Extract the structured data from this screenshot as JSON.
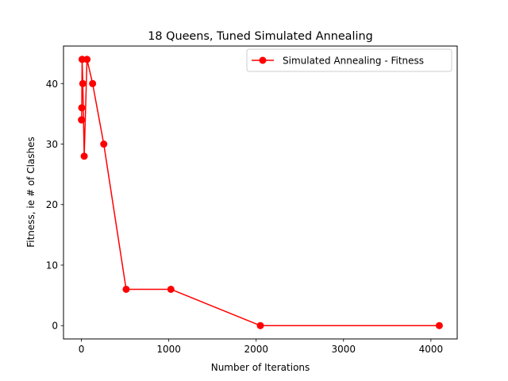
{
  "chart_data": {
    "type": "line",
    "title": "18 Queens, Tuned Simulated Annealing",
    "xlabel": "Number of Iterations",
    "ylabel": "Fitness, ie # of Clashes",
    "xlim": [
      -205,
      4301
    ],
    "ylim": [
      -2.2,
      46.2
    ],
    "xticks": [
      0,
      1000,
      2000,
      3000,
      4000
    ],
    "yticks": [
      0,
      10,
      20,
      30,
      40
    ],
    "grid": false,
    "legend_position": "top-right",
    "series": [
      {
        "name": "Simulated Annealing - Fitness",
        "color": "#ff0000",
        "marker": "circle",
        "x": [
          1,
          2,
          4,
          8,
          16,
          32,
          64,
          128,
          256,
          512,
          1024,
          2048,
          4096
        ],
        "y": [
          34,
          34,
          36,
          44,
          40,
          28,
          44,
          40,
          30,
          6,
          6,
          0,
          0
        ]
      }
    ]
  }
}
